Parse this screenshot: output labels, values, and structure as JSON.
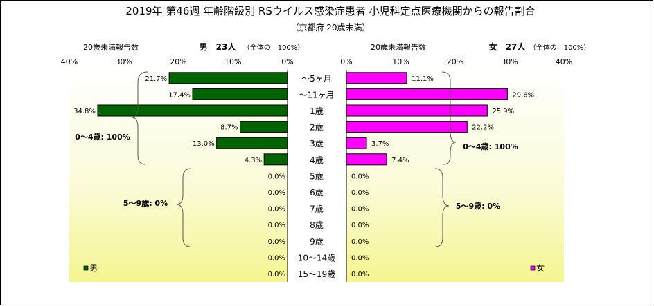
{
  "title": "2019年 第46週 年齢階級別 RSウイルス感染症患者 小児科定点医療機関からの報告割合",
  "subtitle": "（京都府 20歳未満）",
  "chart_data": [
    {
      "type": "bar",
      "orientation": "horizontal",
      "direction": "left",
      "axis_title": "20歳未満報告数",
      "header": "男　23人",
      "header_note": "（全体の　100%）",
      "ticks": [
        "40%",
        "30%",
        "20%",
        "10%",
        "0%"
      ],
      "xlim": [
        0,
        40
      ],
      "categories": [
        "～5ヶ月",
        "～11ヶ月",
        "1歳",
        "2歳",
        "3歳",
        "4歳",
        "5歳",
        "6歳",
        "7歳",
        "8歳",
        "9歳",
        "10～14歳",
        "15～19歳"
      ],
      "values": [
        21.7,
        17.4,
        34.8,
        8.7,
        13.0,
        4.3,
        0.0,
        0.0,
        0.0,
        0.0,
        0.0,
        0.0,
        0.0
      ],
      "data_labels": [
        "21.7%",
        "17.4%",
        "34.8%",
        "8.7%",
        "13.0%",
        "4.3%",
        "0.0%",
        "0.0%",
        "0.0%",
        "0.0%",
        "0.0%",
        "0.0%",
        "0.0%"
      ],
      "brace_annotations": [
        "0～4歳: 100%",
        "5～9歳: 0%"
      ],
      "legend": "男",
      "legend_position": "bottom-left",
      "color": "#006400"
    },
    {
      "type": "bar",
      "orientation": "horizontal",
      "direction": "right",
      "axis_title": "20歳未満報告数",
      "header": "女　27人",
      "header_note": "（全体の　100%）",
      "ticks": [
        "0%",
        "10%",
        "20%",
        "30%",
        "40%"
      ],
      "xlim": [
        0,
        40
      ],
      "categories": [
        "～5ヶ月",
        "～11ヶ月",
        "1歳",
        "2歳",
        "3歳",
        "4歳",
        "5歳",
        "6歳",
        "7歳",
        "8歳",
        "9歳",
        "10～14歳",
        "15～19歳"
      ],
      "values": [
        11.1,
        29.6,
        25.9,
        22.2,
        3.7,
        7.4,
        0.0,
        0.0,
        0.0,
        0.0,
        0.0,
        0.0,
        0.0
      ],
      "data_labels": [
        "11.1%",
        "29.6%",
        "25.9%",
        "22.2%",
        "3.7%",
        "7.4%",
        "0.0%",
        "0.0%",
        "0.0%",
        "0.0%",
        "0.0%",
        "0.0%",
        "0.0%"
      ],
      "brace_annotations": [
        "0～4歳: 100%",
        "5～9歳: 0%"
      ],
      "legend": "女",
      "legend_position": "bottom-right",
      "color": "#ff00ff"
    }
  ]
}
